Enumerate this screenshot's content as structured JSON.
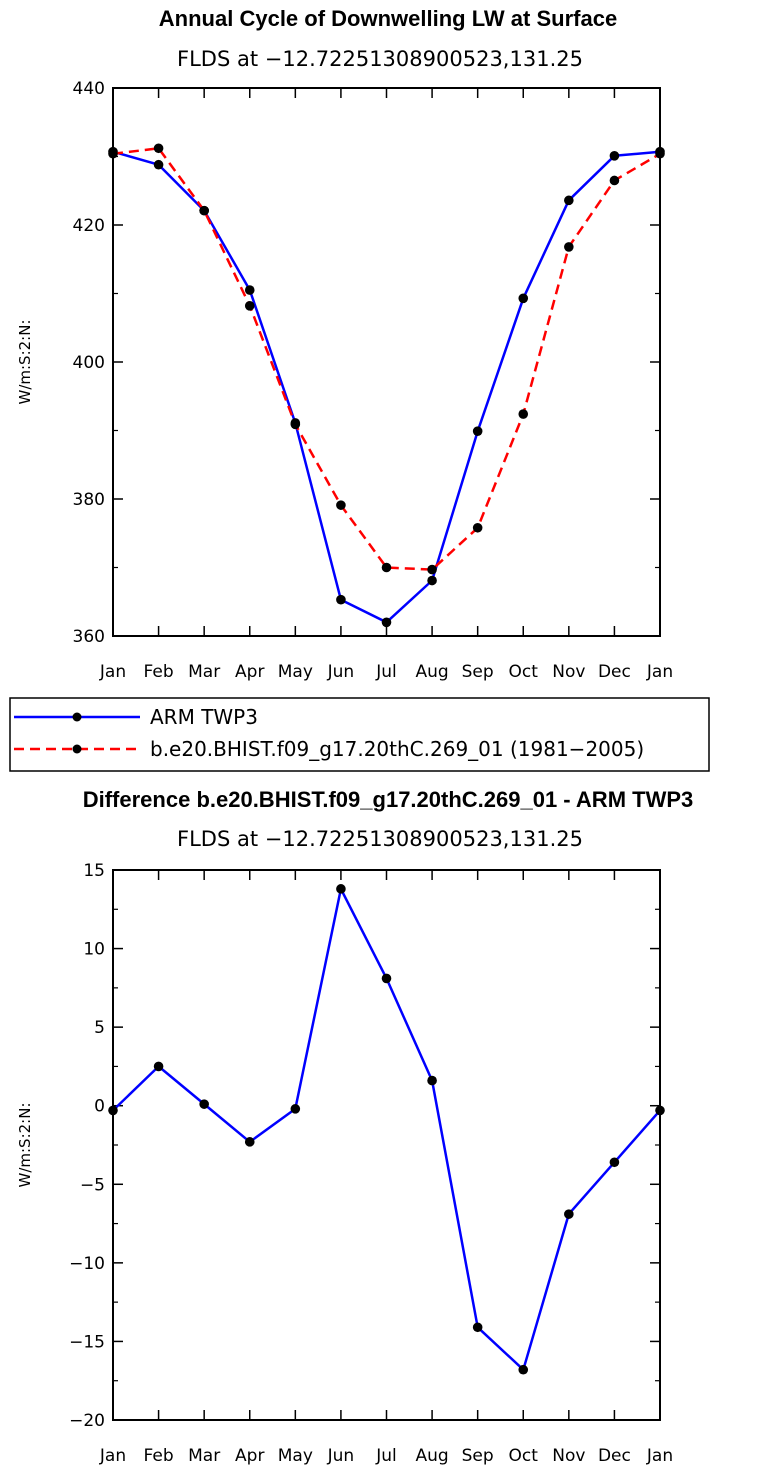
{
  "chart_data": [
    {
      "type": "line",
      "title": "Annual Cycle of Downwelling LW at Surface",
      "subtitle": "FLDS at −12.72251308900523,131.25",
      "ylabel": "W/m:S:2:N:",
      "xlabel": "",
      "categories": [
        "Jan",
        "Feb",
        "Mar",
        "Apr",
        "May",
        "Jun",
        "Jul",
        "Aug",
        "Sep",
        "Oct",
        "Nov",
        "Dec",
        "Jan"
      ],
      "ylim": [
        360,
        440
      ],
      "yticks": [
        360,
        380,
        400,
        420,
        440
      ],
      "ytick_labels": [
        "360",
        "380",
        "400",
        "420",
        "440"
      ],
      "series": [
        {
          "name": "ARM TWP3",
          "color": "#0000ff",
          "dash": "solid",
          "values": [
            430.7,
            428.8,
            422.1,
            410.5,
            391.1,
            365.3,
            362.0,
            368.1,
            389.9,
            409.3,
            423.6,
            430.1,
            430.7
          ]
        },
        {
          "name": "b.e20.BHIST.f09_g17.20thC.269_01 (1981−2005)",
          "color": "#ff0000",
          "dash": "dashed",
          "values": [
            430.4,
            431.2,
            422.1,
            408.2,
            390.9,
            379.1,
            370.0,
            369.7,
            375.8,
            392.4,
            416.8,
            426.5,
            430.4
          ]
        }
      ],
      "legend": "bottom-left",
      "grid": false
    },
    {
      "type": "line",
      "title": "Difference b.e20.BHIST.f09_g17.20thC.269_01 - ARM TWP3",
      "subtitle": "FLDS at −12.72251308900523,131.25",
      "ylabel": "W/m:S:2:N:",
      "xlabel": "",
      "categories": [
        "Jan",
        "Feb",
        "Mar",
        "Apr",
        "May",
        "Jun",
        "Jul",
        "Aug",
        "Sep",
        "Oct",
        "Nov",
        "Dec",
        "Jan"
      ],
      "ylim": [
        -20,
        15
      ],
      "yticks": [
        -20,
        -15,
        -10,
        -5,
        0,
        5,
        10,
        15
      ],
      "ytick_labels": [
        "−20",
        "−15",
        "−10",
        "−5",
        "0",
        "5",
        "10",
        "15"
      ],
      "series": [
        {
          "name": "",
          "color": "#0000ff",
          "dash": "solid",
          "values": [
            -0.3,
            2.5,
            0.1,
            -2.3,
            -0.2,
            13.8,
            8.1,
            1.6,
            -14.1,
            -16.8,
            -6.9,
            -3.6,
            -0.3
          ]
        }
      ],
      "legend": "none",
      "grid": false
    }
  ]
}
